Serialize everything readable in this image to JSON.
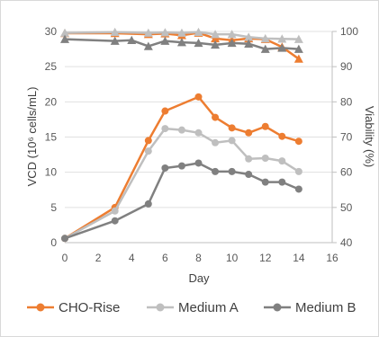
{
  "chart_data": {
    "type": "line",
    "xlabel": "Day",
    "ylabel": "VCD (10⁶ cells/mL)",
    "ylabel_right": "Viability (%)",
    "xlim": [
      0,
      16
    ],
    "ylim": [
      0,
      30
    ],
    "ylim_right": [
      40,
      100
    ],
    "xticks": [
      "0",
      "2",
      "4",
      "6",
      "8",
      "10",
      "12",
      "14",
      "16"
    ],
    "yticks": [
      "0",
      "5",
      "10",
      "15",
      "20",
      "25",
      "30"
    ],
    "yticks_right": [
      "40",
      "50",
      "60",
      "70",
      "80",
      "90",
      "100"
    ],
    "legend_position": "bottom",
    "series": [
      {
        "name": "CHO-Rise",
        "axis": "left",
        "marker": "circle",
        "color": "#ED7D31",
        "x": [
          0,
          3,
          5,
          6,
          8,
          9,
          10,
          11,
          12,
          13,
          14
        ],
        "values": [
          0.6,
          5.0,
          14.5,
          18.7,
          20.7,
          17.8,
          16.3,
          15.6,
          16.5,
          15.1,
          14.4
        ]
      },
      {
        "name": "Medium A",
        "axis": "left",
        "marker": "circle",
        "color": "#BFBFBF",
        "x": [
          0,
          3,
          5,
          6,
          7,
          8,
          9,
          10,
          11,
          12,
          13,
          14
        ],
        "values": [
          0.6,
          4.5,
          13.0,
          16.2,
          16.0,
          15.6,
          14.2,
          14.5,
          11.9,
          12.0,
          11.6,
          10.1
        ]
      },
      {
        "name": "Medium B",
        "axis": "left",
        "marker": "circle",
        "color": "#808080",
        "x": [
          0,
          3,
          5,
          6,
          7,
          8,
          9,
          10,
          11,
          12,
          13,
          14
        ],
        "values": [
          0.6,
          3.1,
          5.5,
          10.6,
          10.9,
          11.3,
          10.1,
          10.1,
          9.7,
          8.6,
          8.6,
          7.6
        ]
      },
      {
        "name": "",
        "axis": "right",
        "marker": "triangle",
        "color": "#ED7D31",
        "x": [
          0,
          3,
          5,
          6,
          7,
          8,
          9,
          10,
          11,
          12,
          13,
          14
        ],
        "values": [
          99.5,
          99.5,
          99.2,
          99.4,
          98.9,
          99.6,
          98.0,
          97.5,
          98.0,
          97.8,
          95.6,
          92.2
        ]
      },
      {
        "name": "",
        "axis": "right",
        "marker": "triangle",
        "color": "#BFBFBF",
        "x": [
          0,
          3,
          5,
          6,
          7,
          8,
          9,
          10,
          11,
          12,
          13,
          14
        ],
        "values": [
          99.6,
          99.8,
          99.6,
          99.7,
          99.6,
          99.8,
          99.2,
          99.2,
          98.4,
          98.0,
          97.9,
          97.8
        ]
      },
      {
        "name": "",
        "axis": "right",
        "marker": "triangle",
        "color": "#808080",
        "x": [
          0,
          3,
          4,
          5,
          6,
          7,
          8,
          9,
          10,
          11,
          12,
          13,
          14
        ],
        "values": [
          97.8,
          97.3,
          97.5,
          95.8,
          97.3,
          96.9,
          96.7,
          96.2,
          96.7,
          96.5,
          95.0,
          95.3,
          95.0
        ]
      }
    ]
  }
}
